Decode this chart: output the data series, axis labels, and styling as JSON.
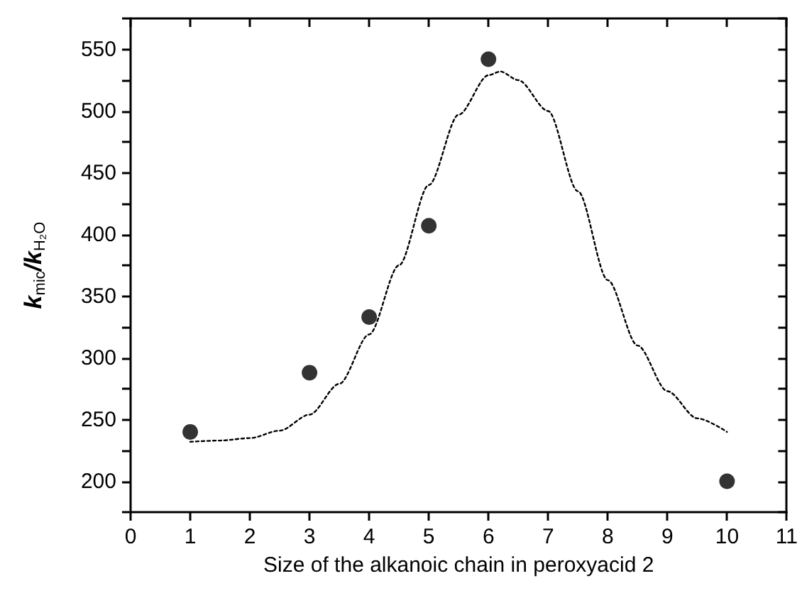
{
  "chart_data": {
    "type": "scatter",
    "xlabel": "Size of the alkanoic chain in peroxyacid 2",
    "ylabel": "k$_{mic}$/k$_{H₂O}$",
    "xlim": [
      0,
      11
    ],
    "xticks": [
      0,
      1,
      2,
      3,
      4,
      5,
      6,
      7,
      8,
      9,
      10,
      11
    ],
    "ylim": [
      175,
      575
    ],
    "yticks": [
      {
        "value": 175,
        "label": null
      },
      200,
      {
        "value": 225,
        "label": null
      },
      250,
      {
        "value": 275,
        "label": null
      },
      300,
      {
        "value": 325,
        "label": null
      },
      350,
      {
        "value": 375,
        "label": null
      },
      400,
      {
        "value": 425,
        "label": null
      },
      450,
      {
        "value": 475,
        "label": null
      },
      500,
      {
        "value": 525,
        "label": null
      },
      550,
      {
        "value": 575,
        "label": null
      }
    ],
    "grid": false,
    "series": [
      {
        "color": "#000000",
        "marker": "circle",
        "x": [
          1,
          3,
          4,
          5,
          6,
          10
        ],
        "values": [
          240,
          288,
          333,
          407,
          542,
          200
        ]
      },
      {
        "type": "line",
        "color": "#000000",
        "marker": "none",
        "line_style": "dotted",
        "x": [
          1,
          1.5,
          2,
          2.5,
          3,
          3.5,
          4,
          4.5,
          5,
          5.5,
          6,
          6.2,
          6.5,
          7,
          7.5,
          8,
          8.5,
          9,
          9.5,
          10
        ],
        "values": [
          232,
          233,
          235,
          241,
          254,
          279,
          319,
          375,
          440,
          497,
          529,
          532,
          525,
          500,
          435,
          363,
          310,
          273,
          251,
          240
        ]
      }
    ]
  }
}
